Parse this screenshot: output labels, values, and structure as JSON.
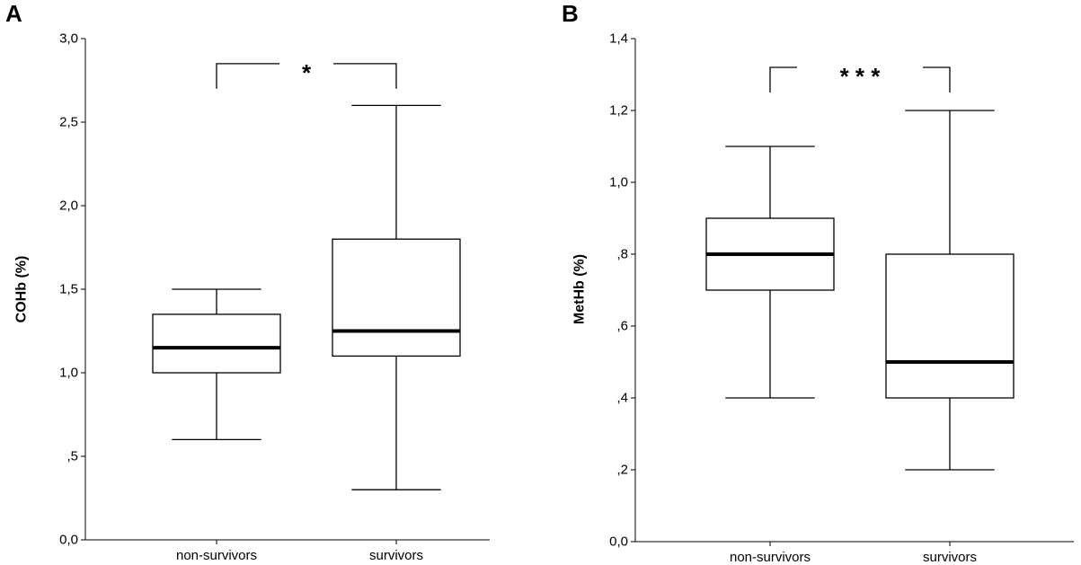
{
  "chart_data": [
    {
      "type": "box",
      "panel_label": "A",
      "ylabel": "COHb (%)",
      "ylim": [
        0,
        3.0
      ],
      "yticks": [
        0,
        0.5,
        1.0,
        1.5,
        2.0,
        2.5,
        3.0
      ],
      "ytick_labels": [
        "0,0",
        ",5",
        "1,0",
        "1,5",
        "2,0",
        "2,5",
        "3,0"
      ],
      "categories": [
        "non-survivors",
        "survivors"
      ],
      "boxes": [
        {
          "min": 0.6,
          "q1": 1.0,
          "median": 1.15,
          "q3": 1.35,
          "max": 1.5
        },
        {
          "min": 0.3,
          "q1": 1.1,
          "median": 1.25,
          "q3": 1.8,
          "max": 2.6
        }
      ],
      "significance": "*",
      "bracket_y": 2.85,
      "bracket_drop": 0.15,
      "grid": false
    },
    {
      "type": "box",
      "panel_label": "B",
      "ylabel": "MetHb (%)",
      "ylim": [
        0,
        1.4
      ],
      "yticks": [
        0,
        0.2,
        0.4,
        0.6,
        0.8,
        1.0,
        1.2,
        1.4
      ],
      "ytick_labels": [
        "0,0",
        ",2",
        ",4",
        ",6",
        ",8",
        "1,0",
        "1,2",
        "1,4"
      ],
      "categories": [
        "non-survivors",
        "survivors"
      ],
      "boxes": [
        {
          "min": 0.4,
          "q1": 0.7,
          "median": 0.8,
          "q3": 0.9,
          "max": 1.1
        },
        {
          "min": 0.2,
          "q1": 0.4,
          "median": 0.5,
          "q3": 0.8,
          "max": 1.2
        }
      ],
      "significance": "* * *",
      "bracket_y": 1.32,
      "bracket_drop": 0.07,
      "grid": false
    }
  ]
}
